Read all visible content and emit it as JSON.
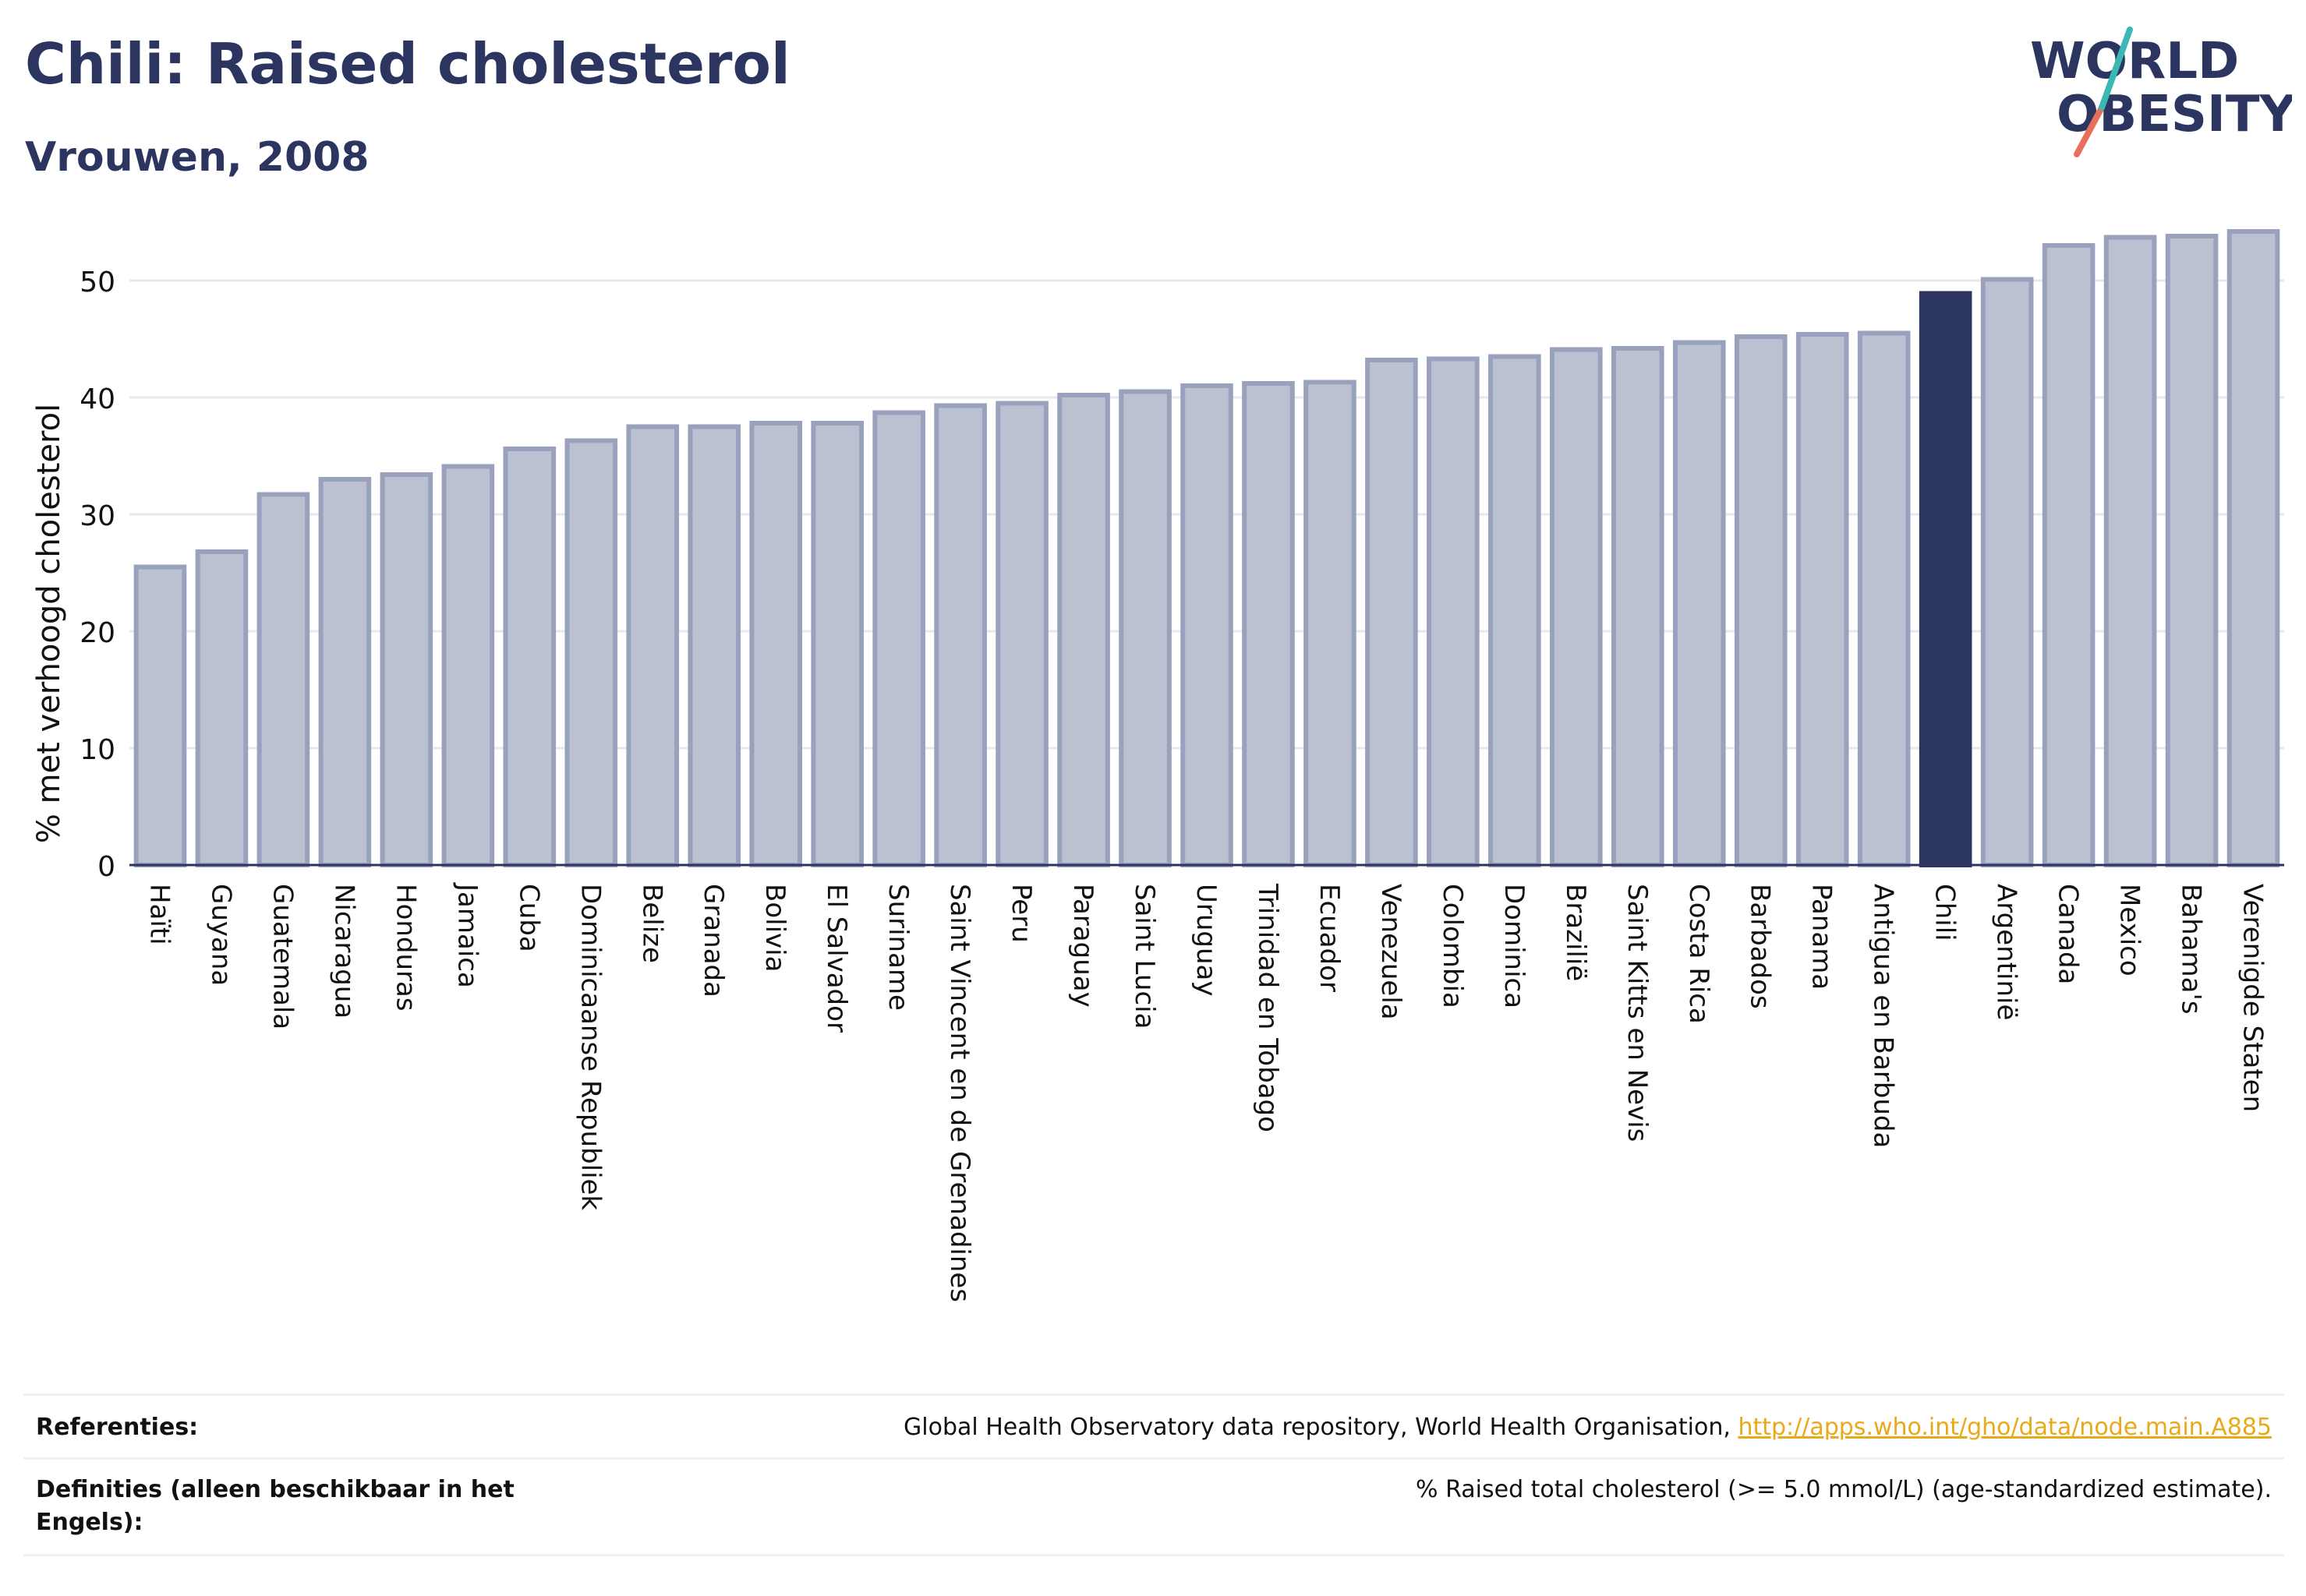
{
  "header": {
    "title": "Chili: Raised cholesterol",
    "subtitle": "Vrouwen, 2008"
  },
  "logo": {
    "line1": "WORLD",
    "line2": "OBESITY"
  },
  "colors": {
    "bar": "#bcc1d1",
    "bar_outline": "#9aa1bc",
    "highlight": "#2b3560",
    "grid": "#e6e8ee",
    "axis": "#2b3560",
    "link": "#e8a91a"
  },
  "chart_data": {
    "type": "bar",
    "ylabel": "% met verhoogd cholesterol",
    "xlabel": "",
    "ylim": [
      0,
      56
    ],
    "yticks": [
      0,
      10,
      20,
      30,
      40,
      50
    ],
    "grid": true,
    "highlight": "Chili",
    "categories": [
      "Haïti",
      "Guyana",
      "Guatemala",
      "Nicaragua",
      "Honduras",
      "Jamaica",
      "Cuba",
      "Dominicaanse Republiek",
      "Belize",
      "Granada",
      "Bolivia",
      "El Salvador",
      "Suriname",
      "Saint Vincent en de Grenadines",
      "Peru",
      "Paraguay",
      "Saint Lucia",
      "Uruguay",
      "Trinidad en Tobago",
      "Ecuador",
      "Venezuela",
      "Colombia",
      "Dominica",
      "Brazilië",
      "Saint Kitts en Nevis",
      "Costa Rica",
      "Barbados",
      "Panama",
      "Antigua en Barbuda",
      "Chili",
      "Argentinië",
      "Canada",
      "Mexico",
      "Bahama's",
      "Verenigde Staten"
    ],
    "values": [
      25.5,
      26.8,
      31.7,
      33.0,
      33.4,
      34.1,
      35.6,
      36.3,
      37.5,
      37.5,
      37.8,
      37.8,
      38.7,
      39.3,
      39.5,
      40.2,
      40.5,
      41.0,
      41.2,
      41.3,
      43.2,
      43.3,
      43.5,
      44.1,
      44.2,
      44.7,
      45.2,
      45.4,
      45.5,
      48.9,
      50.1,
      53.0,
      53.7,
      53.8,
      54.2
    ]
  },
  "references": {
    "ref_label": "Referenties:",
    "ref_text": "Global Health Observatory data repository, World Health Organisation, ",
    "ref_link": "http://apps.who.int/gho/data/node.main.A885",
    "def_label": "Definities (alleen beschikbaar in het Engels):",
    "def_text": "% Raised total cholesterol (>= 5.0 mmol/L) (age-standardized estimate)."
  }
}
